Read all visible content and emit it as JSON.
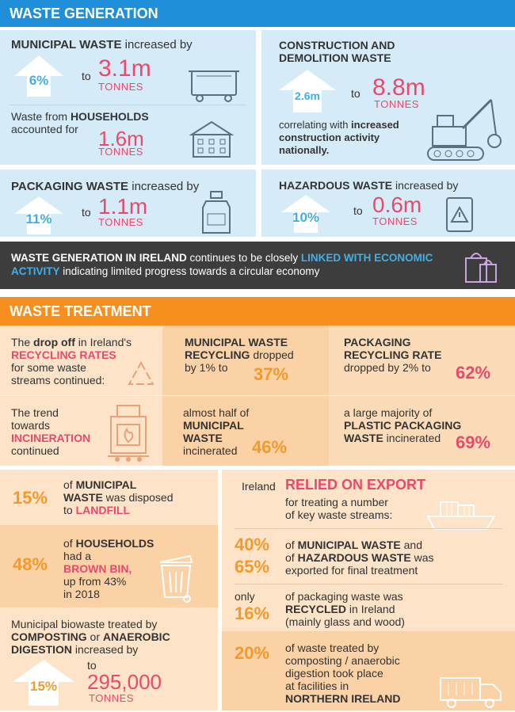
{
  "waste_generation": {
    "header": "WASTE GENERATION",
    "municipal": {
      "title_bold": "MUNICIPAL WASTE",
      "title_rest": " increased by",
      "pct": "6%",
      "to": "to",
      "value": "3.1m",
      "unit": "TONNES"
    },
    "households": {
      "line1": "Waste from ",
      "line1_bold": "HOUSEHOLDS",
      "line2": "accounted for",
      "value": "1.6m",
      "unit": "TONNES"
    },
    "construction": {
      "title_line1": "CONSTRUCTION AND",
      "title_line2": "DEMOLITION WASTE",
      "from": "2.6m",
      "to": "to",
      "value": "8.8m",
      "unit": "TONNES",
      "corr1": "correlating with ",
      "corr1_bold": "increased",
      "corr2_bold": "construction activity",
      "corr3_bold": "nationally."
    },
    "packaging": {
      "title_bold": "PACKAGING WASTE",
      "title_rest": " increased by",
      "pct": "11%",
      "to": "to",
      "value": "1.1m",
      "unit": "TONNES"
    },
    "hazardous": {
      "title_bold": "HAZARDOUS WASTE",
      "title_rest": " increased by",
      "pct": "10%",
      "to": "to",
      "value": "0.6m",
      "unit": "TONNES"
    },
    "banner": {
      "p1": "WASTE GENERATION IN IRELAND",
      "p2": " continues to be closely ",
      "p3": "LINKED WITH",
      "p4": "ECONOMIC ACTIVITY",
      "p5": " indicating limited progress towards a circular economy"
    }
  },
  "waste_treatment": {
    "header": "WASTE TREATMENT",
    "recycling_rates": {
      "l1a": "The ",
      "l1b": "drop off",
      "l1c": " in Ireland's",
      "l2": "RECYCLING RATES",
      "l3": "for some waste",
      "l4": "streams continued:"
    },
    "municipal_recycling": {
      "l1": "MUNICIPAL WASTE",
      "l2a": "RECYCLING",
      "l2b": " dropped",
      "l3": "by 1% to",
      "value": "37%"
    },
    "packaging_recycling": {
      "l1": "PACKAGING",
      "l2": "RECYCLING RATE",
      "l3": "dropped by 2% to",
      "value": "62%"
    },
    "incineration": {
      "l1": "The trend",
      "l2": "towards",
      "l3": "INCINERATION",
      "l4": "continued"
    },
    "municipal_incinerated": {
      "l1": "almost half of",
      "l2": "MUNICIPAL",
      "l3": "WASTE",
      "l4": "incinerated",
      "value": "46%"
    },
    "plastic_incinerated": {
      "l1": "a large majority of",
      "l2": "PLASTIC PACKAGING",
      "l3a": "WASTE",
      "l3b": " incinerated",
      "value": "69%"
    },
    "landfill": {
      "pct": "15%",
      "l1a": "of ",
      "l1b": "MUNICIPAL",
      "l2a": "WASTE",
      "l2b": " was disposed",
      "l3a": "to ",
      "l3b": "LANDFILL"
    },
    "brown_bin": {
      "pct": "48%",
      "l1a": "of ",
      "l1b": "HOUSEHOLDS",
      "l2": "had a",
      "l3": "BROWN BIN,",
      "l4": "up from 43%",
      "l5": "in 2018"
    },
    "biowaste": {
      "l1": "Municipal biowaste treated by",
      "l2a": "COMPOSTING",
      "l2b": " or ",
      "l2c": "ANAEROBIC",
      "l3a": "DIGESTION",
      "l3b": " increased by",
      "pct": "15%",
      "to": "to",
      "value": "295,000",
      "unit": "TONNES"
    },
    "export": {
      "l1a": "Ireland",
      "l1b": "RELIED ON EXPORT",
      "l2": "for treating a number",
      "l3": "of key waste streams:"
    },
    "exported": {
      "pct1": "40%",
      "pct2": "65%",
      "l1a": "of ",
      "l1b": "MUNICIPAL WASTE",
      "l1c": " and",
      "l2a": "of ",
      "l2b": "HAZARDOUS WASTE",
      "l2c": " was",
      "l3": "exported for final treatment"
    },
    "recycled_ireland": {
      "only": "only",
      "pct": "16%",
      "l1": "of packaging waste was",
      "l2a": "RECYCLED",
      "l2b": " in Ireland",
      "l3": "(mainly glass and wood)"
    },
    "northern_ireland": {
      "pct": "20%",
      "l1": "of waste treated by",
      "l2": "composting / anaerobic",
      "l3": "digestion took place",
      "l4": "at facilities in",
      "l5": "NORTHERN IRELAND"
    }
  },
  "colors": {
    "blue": "#1e8fd8",
    "orange": "#f78f1e",
    "pink": "#e84a6c",
    "light_blue_panel": "#d6ebf8"
  }
}
